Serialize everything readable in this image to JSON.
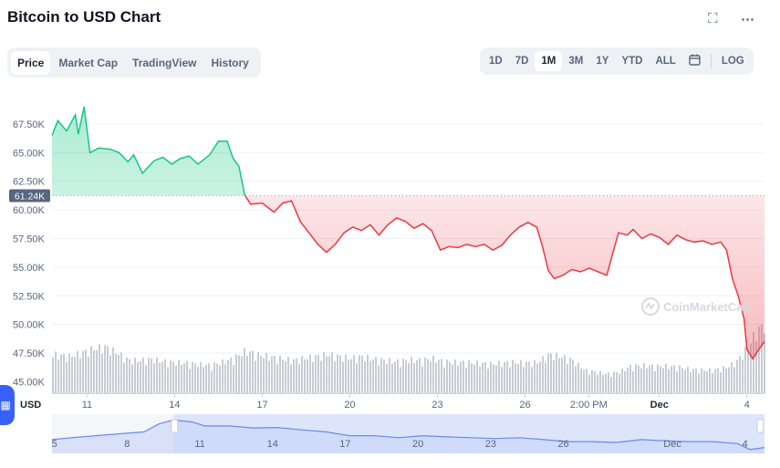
{
  "header": {
    "title": "Bitcoin to USD Chart",
    "fullscreen_icon": "expand-icon",
    "more_icon": "more-dots-icon"
  },
  "tabs": [
    {
      "label": "Price",
      "active": true
    },
    {
      "label": "Market Cap",
      "active": false
    },
    {
      "label": "TradingView",
      "active": false
    },
    {
      "label": "History",
      "active": false
    }
  ],
  "ranges": [
    {
      "label": "1D",
      "active": false
    },
    {
      "label": "7D",
      "active": false
    },
    {
      "label": "1M",
      "active": true
    },
    {
      "label": "3M",
      "active": false
    },
    {
      "label": "1Y",
      "active": false
    },
    {
      "label": "YTD",
      "active": false
    },
    {
      "label": "ALL",
      "active": false
    }
  ],
  "log_label": "LOG",
  "currency_label": "USD",
  "watermark": "CoinMarketCap",
  "colors": {
    "up": "#16c784",
    "down": "#ea3943",
    "volume": "#c8ccd3",
    "nav": "#6b89e8",
    "accent": "#3861fb"
  },
  "chart_data": {
    "type": "area",
    "reference_label": "61.24K",
    "reference_value": 61240,
    "ylim": [
      44000,
      71000
    ],
    "y_ticks": [
      "45.00K",
      "47.50K",
      "50.00K",
      "52.50K",
      "55.00K",
      "57.50K",
      "60.00K",
      "62.50K",
      "65.00K",
      "67.50K"
    ],
    "y_tick_values": [
      45000,
      47500,
      50000,
      52500,
      55000,
      57500,
      60000,
      62500,
      65000,
      67500
    ],
    "x_ticks": [
      {
        "label": "11",
        "t": 10.4
      },
      {
        "label": "14",
        "t": 13.4
      },
      {
        "label": "17",
        "t": 16.4
      },
      {
        "label": "20",
        "t": 19.4
      },
      {
        "label": "23",
        "t": 22.4
      },
      {
        "label": "26",
        "t": 25.4
      },
      {
        "label": "2:00 PM",
        "t": 27.58
      },
      {
        "label": "Dec",
        "t": 30.0
      },
      {
        "label": "4",
        "t": 33.0
      }
    ],
    "x_range": [
      9.2,
      33.6
    ],
    "series": [
      {
        "values": [
          [
            9.2,
            66.5
          ],
          [
            9.4,
            67.8
          ],
          [
            9.7,
            66.9
          ],
          [
            10.0,
            68.3
          ],
          [
            10.1,
            66.6
          ],
          [
            10.3,
            69.0
          ],
          [
            10.5,
            65.0
          ],
          [
            10.8,
            65.4
          ],
          [
            11.2,
            65.3
          ],
          [
            11.5,
            65.0
          ],
          [
            11.8,
            64.2
          ],
          [
            12.0,
            64.8
          ],
          [
            12.3,
            63.2
          ],
          [
            12.7,
            64.3
          ],
          [
            13.0,
            64.6
          ],
          [
            13.3,
            64.0
          ],
          [
            13.6,
            64.5
          ],
          [
            13.9,
            64.7
          ],
          [
            14.2,
            64.0
          ],
          [
            14.6,
            64.8
          ],
          [
            14.9,
            66.0
          ],
          [
            15.2,
            66.0
          ],
          [
            15.4,
            64.5
          ],
          [
            15.6,
            63.8
          ],
          [
            15.8,
            61.3
          ],
          [
            16.0,
            60.5
          ],
          [
            16.4,
            60.6
          ],
          [
            16.8,
            59.8
          ],
          [
            17.1,
            60.6
          ],
          [
            17.4,
            60.8
          ],
          [
            17.7,
            59.0
          ],
          [
            18.0,
            58.0
          ],
          [
            18.3,
            57.0
          ],
          [
            18.6,
            56.3
          ],
          [
            18.9,
            57.0
          ],
          [
            19.2,
            58.0
          ],
          [
            19.5,
            58.5
          ],
          [
            19.8,
            58.2
          ],
          [
            20.1,
            58.7
          ],
          [
            20.4,
            57.8
          ],
          [
            20.7,
            58.7
          ],
          [
            21.0,
            59.3
          ],
          [
            21.3,
            59.0
          ],
          [
            21.6,
            58.4
          ],
          [
            21.9,
            58.8
          ],
          [
            22.2,
            58.2
          ],
          [
            22.5,
            56.5
          ],
          [
            22.8,
            56.8
          ],
          [
            23.1,
            56.7
          ],
          [
            23.4,
            57.0
          ],
          [
            23.7,
            56.8
          ],
          [
            24.0,
            57.0
          ],
          [
            24.3,
            56.5
          ],
          [
            24.6,
            56.9
          ],
          [
            24.9,
            57.8
          ],
          [
            25.2,
            58.5
          ],
          [
            25.5,
            58.9
          ],
          [
            25.8,
            58.5
          ],
          [
            26.0,
            56.8
          ],
          [
            26.2,
            54.7
          ],
          [
            26.4,
            54.0
          ],
          [
            26.7,
            54.3
          ],
          [
            27.0,
            54.8
          ],
          [
            27.3,
            54.6
          ],
          [
            27.6,
            54.9
          ],
          [
            27.9,
            54.6
          ],
          [
            28.2,
            54.3
          ],
          [
            28.4,
            56.2
          ],
          [
            28.6,
            58.0
          ],
          [
            28.9,
            57.8
          ],
          [
            29.1,
            58.3
          ],
          [
            29.4,
            57.5
          ],
          [
            29.7,
            57.9
          ],
          [
            30.0,
            57.6
          ],
          [
            30.3,
            57.0
          ],
          [
            30.6,
            57.8
          ],
          [
            30.9,
            57.4
          ],
          [
            31.2,
            57.2
          ],
          [
            31.5,
            57.3
          ],
          [
            31.8,
            57.0
          ],
          [
            32.1,
            57.2
          ],
          [
            32.3,
            56.5
          ],
          [
            32.5,
            54.0
          ],
          [
            32.7,
            52.5
          ],
          [
            32.9,
            50.5
          ],
          [
            33.0,
            47.8
          ],
          [
            33.2,
            47.0
          ],
          [
            33.4,
            47.8
          ],
          [
            33.6,
            48.5
          ]
        ]
      }
    ],
    "volume": [
      [
        9.2,
        1.0
      ],
      [
        9.8,
        0.95
      ],
      [
        10.2,
        1.05
      ],
      [
        10.6,
        1.15
      ],
      [
        11.0,
        1.2
      ],
      [
        11.4,
        1.05
      ],
      [
        11.8,
        0.85
      ],
      [
        12.2,
        0.85
      ],
      [
        12.6,
        0.88
      ],
      [
        13.0,
        0.82
      ],
      [
        13.4,
        0.8
      ],
      [
        13.8,
        0.78
      ],
      [
        14.2,
        0.75
      ],
      [
        14.6,
        0.72
      ],
      [
        15.0,
        0.8
      ],
      [
        15.4,
        0.9
      ],
      [
        15.8,
        1.1
      ],
      [
        16.2,
        1.0
      ],
      [
        16.6,
        0.95
      ],
      [
        17.0,
        0.9
      ],
      [
        17.4,
        0.85
      ],
      [
        17.8,
        0.9
      ],
      [
        18.2,
        0.95
      ],
      [
        18.6,
        1.0
      ],
      [
        19.0,
        0.95
      ],
      [
        19.4,
        0.9
      ],
      [
        19.8,
        0.95
      ],
      [
        20.2,
        0.88
      ],
      [
        20.6,
        0.85
      ],
      [
        21.0,
        0.82
      ],
      [
        21.4,
        0.86
      ],
      [
        21.8,
        0.85
      ],
      [
        22.2,
        0.9
      ],
      [
        22.6,
        0.82
      ],
      [
        23.0,
        0.8
      ],
      [
        23.4,
        0.8
      ],
      [
        23.8,
        0.78
      ],
      [
        24.2,
        0.75
      ],
      [
        24.6,
        0.78
      ],
      [
        25.0,
        0.8
      ],
      [
        25.4,
        0.78
      ],
      [
        25.8,
        0.8
      ],
      [
        26.2,
        1.0
      ],
      [
        26.6,
        0.95
      ],
      [
        27.0,
        0.85
      ],
      [
        27.4,
        0.6
      ],
      [
        27.8,
        0.55
      ],
      [
        28.2,
        0.5
      ],
      [
        28.6,
        0.55
      ],
      [
        29.0,
        0.7
      ],
      [
        29.4,
        0.72
      ],
      [
        29.8,
        0.7
      ],
      [
        30.2,
        0.7
      ],
      [
        30.6,
        0.68
      ],
      [
        31.0,
        0.62
      ],
      [
        31.4,
        0.6
      ],
      [
        31.8,
        0.6
      ],
      [
        32.2,
        0.65
      ],
      [
        32.6,
        0.8
      ],
      [
        33.0,
        1.2
      ],
      [
        33.3,
        1.6
      ],
      [
        33.6,
        1.8
      ]
    ],
    "navigator": {
      "x_ticks": [
        {
          "label": "5",
          "t": 4.3
        },
        {
          "label": "8",
          "t": 7.3
        },
        {
          "label": "11",
          "t": 10.3
        },
        {
          "label": "14",
          "t": 13.3
        },
        {
          "label": "17",
          "t": 16.3
        },
        {
          "label": "20",
          "t": 19.3
        },
        {
          "label": "23",
          "t": 22.3
        },
        {
          "label": "26",
          "t": 25.3
        },
        {
          "label": "Dec",
          "t": 29.8
        },
        {
          "label": "4",
          "t": 32.8
        }
      ],
      "x_range": [
        4.2,
        33.6
      ],
      "selection": [
        9.2,
        33.6
      ],
      "values": [
        [
          4.2,
          0.35
        ],
        [
          5.0,
          0.4
        ],
        [
          6.0,
          0.45
        ],
        [
          7.0,
          0.5
        ],
        [
          8.0,
          0.55
        ],
        [
          8.6,
          0.75
        ],
        [
          9.2,
          0.85
        ],
        [
          10.0,
          0.8
        ],
        [
          10.5,
          0.7
        ],
        [
          11.5,
          0.7
        ],
        [
          12.5,
          0.65
        ],
        [
          13.5,
          0.66
        ],
        [
          14.5,
          0.6
        ],
        [
          15.5,
          0.55
        ],
        [
          16.5,
          0.45
        ],
        [
          17.5,
          0.45
        ],
        [
          18.5,
          0.4
        ],
        [
          19.5,
          0.45
        ],
        [
          20.5,
          0.42
        ],
        [
          21.5,
          0.4
        ],
        [
          22.5,
          0.38
        ],
        [
          23.5,
          0.4
        ],
        [
          24.5,
          0.35
        ],
        [
          25.5,
          0.3
        ],
        [
          26.5,
          0.3
        ],
        [
          27.5,
          0.28
        ],
        [
          28.5,
          0.35
        ],
        [
          29.5,
          0.32
        ],
        [
          30.5,
          0.3
        ],
        [
          31.5,
          0.3
        ],
        [
          32.5,
          0.25
        ],
        [
          33.0,
          0.1
        ],
        [
          33.6,
          0.15
        ]
      ]
    }
  }
}
